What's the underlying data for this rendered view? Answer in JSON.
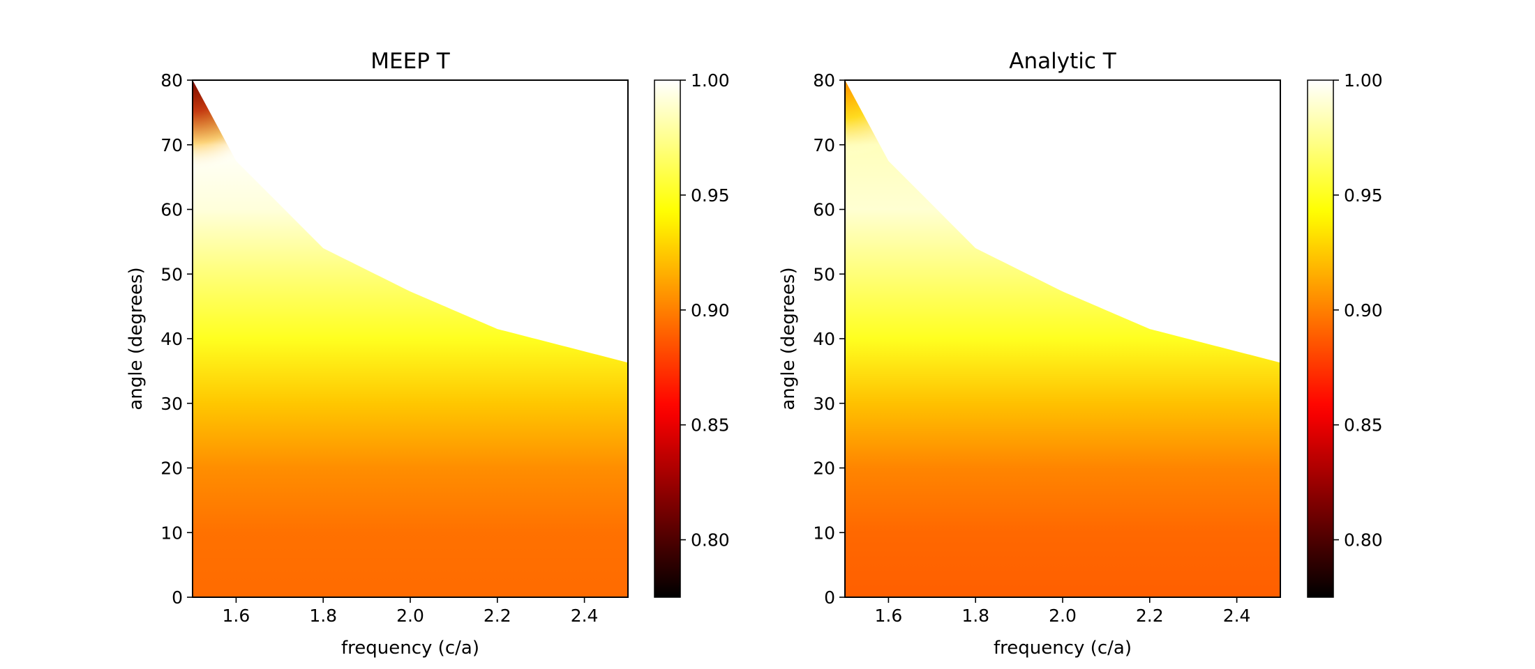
{
  "chart_data": [
    {
      "type": "heatmap",
      "title": "MEEP T",
      "xlabel": "frequency (c/a)",
      "ylabel": "angle (degrees)",
      "xlim": [
        1.5,
        2.5
      ],
      "ylim": [
        0,
        80
      ],
      "xticks": [
        "1.6",
        "1.8",
        "2.0",
        "2.2",
        "2.4"
      ],
      "xtick_values": [
        1.6,
        1.8,
        2.0,
        2.2,
        2.4
      ],
      "yticks": [
        "0",
        "10",
        "20",
        "30",
        "40",
        "50",
        "60",
        "70",
        "80"
      ],
      "ytick_values": [
        0,
        10,
        20,
        30,
        40,
        50,
        60,
        70,
        80
      ],
      "boundary_angle_at_freq": [
        [
          1.5,
          80
        ],
        [
          1.6,
          67.5
        ],
        [
          1.8,
          54
        ],
        [
          2.0,
          47.3
        ],
        [
          2.2,
          41.5
        ],
        [
          2.5,
          36.3
        ]
      ],
      "transmission_by_angle": [
        [
          0,
          0.893
        ],
        [
          10,
          0.895
        ],
        [
          20,
          0.905
        ],
        [
          30,
          0.924
        ],
        [
          40,
          0.95
        ],
        [
          50,
          0.97
        ],
        [
          60,
          0.992
        ],
        [
          70,
          0.999
        ],
        [
          80,
          0.81
        ]
      ],
      "edge_artifact": "dark red near 1.5–1.55, 68–80 degrees",
      "colorbar": {
        "range": [
          0.775,
          1.0
        ],
        "ticks": [
          "0.80",
          "0.85",
          "0.90",
          "0.95",
          "1.00"
        ],
        "tick_values": [
          0.8,
          0.85,
          0.9,
          0.95,
          1.0
        ],
        "colormap": "hot"
      }
    },
    {
      "type": "heatmap",
      "title": "Analytic T",
      "xlabel": "frequency (c/a)",
      "ylabel": "angle (degrees)",
      "xlim": [
        1.5,
        2.5
      ],
      "ylim": [
        0,
        80
      ],
      "xticks": [
        "1.6",
        "1.8",
        "2.0",
        "2.2",
        "2.4"
      ],
      "xtick_values": [
        1.6,
        1.8,
        2.0,
        2.2,
        2.4
      ],
      "yticks": [
        "0",
        "10",
        "20",
        "30",
        "40",
        "50",
        "60",
        "70",
        "80"
      ],
      "ytick_values": [
        0,
        10,
        20,
        30,
        40,
        50,
        60,
        70,
        80
      ],
      "boundary_angle_at_freq": [
        [
          1.5,
          80
        ],
        [
          1.6,
          67.5
        ],
        [
          1.8,
          54
        ],
        [
          2.0,
          47.3
        ],
        [
          2.2,
          41.5
        ],
        [
          2.5,
          36.3
        ]
      ],
      "transmission_by_angle": [
        [
          0,
          0.889
        ],
        [
          10,
          0.892
        ],
        [
          20,
          0.902
        ],
        [
          30,
          0.922
        ],
        [
          40,
          0.95
        ],
        [
          50,
          0.97
        ],
        [
          60,
          0.99
        ],
        [
          70,
          0.985
        ],
        [
          80,
          0.92
        ]
      ],
      "colorbar": {
        "range": [
          0.775,
          1.0
        ],
        "ticks": [
          "0.80",
          "0.85",
          "0.90",
          "0.95",
          "1.00"
        ],
        "tick_values": [
          0.8,
          0.85,
          0.9,
          0.95,
          1.0
        ],
        "colormap": "hot"
      }
    }
  ]
}
